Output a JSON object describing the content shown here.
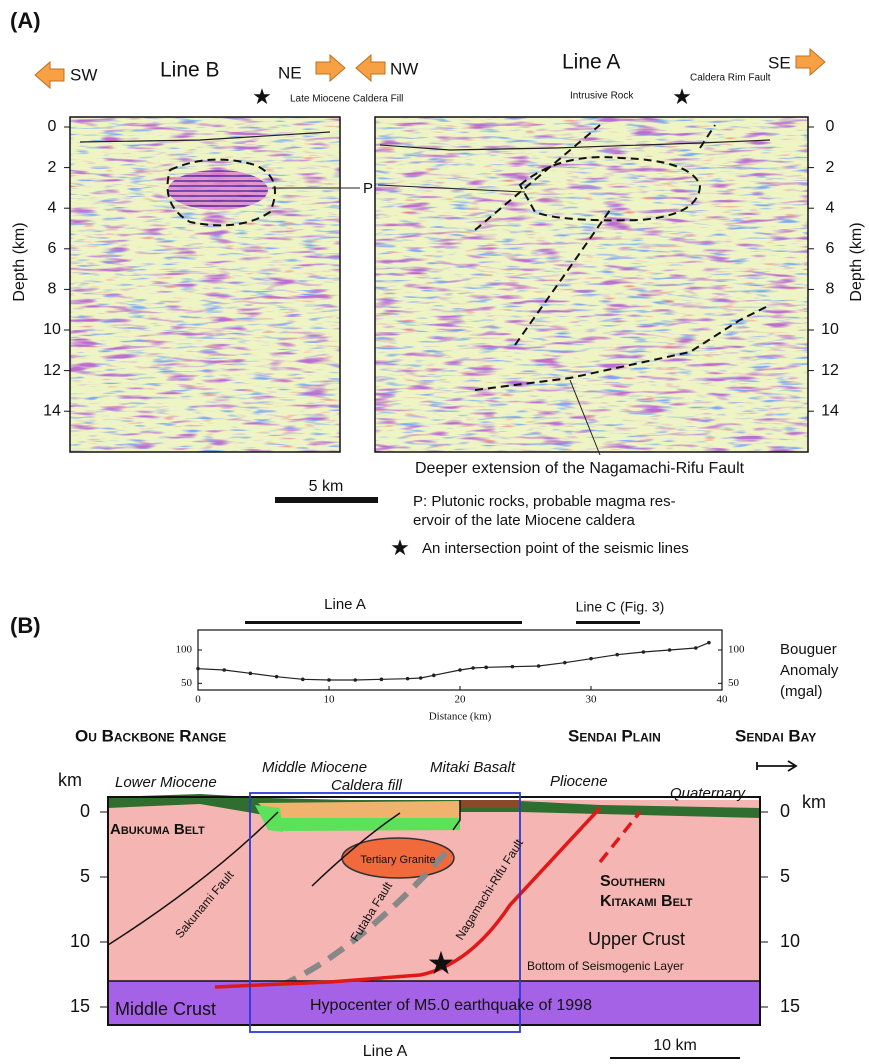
{
  "panel_a": {
    "label": "(A)",
    "line_b": {
      "title": "Line B",
      "dir_left": "SW",
      "dir_right": "NE"
    },
    "line_a": {
      "title": "Line A",
      "dir_left": "NW",
      "dir_right": "SE"
    },
    "annotations": {
      "caldera_fill": "Late Miocene Caldera Fill",
      "intrusive": "Intrusive Rock",
      "rim_fault": "Caldera Rim Fault",
      "p": "P",
      "deeper": "Deeper extension of the Nagamachi-Rifu Fault"
    },
    "depth_label": "Depth (km)",
    "depth_ticks": [
      0,
      2,
      4,
      6,
      8,
      10,
      12,
      14
    ],
    "scale_bar": "5 km",
    "legend": {
      "p_lines": [
        "P: Plutonic rocks, probable magma res-",
        "ervoir of the late Miocene caldera"
      ],
      "star": "An intersection point of the seismic lines"
    }
  },
  "panel_b": {
    "label": "(B)",
    "profile_lines": {
      "line_a": "Line A",
      "line_c": "Line C (Fig. 3)"
    },
    "regions": {
      "ou": "Ou Backbone Range",
      "plain": "Sendai Plain",
      "bay": "Sendai Bay"
    },
    "units": {
      "lower_miocene": "Lower Miocene",
      "middle_miocene": "Middle Miocene",
      "caldera_fill": "Caldera fill",
      "mitaki": "Mitaki Basalt",
      "pliocene": "Pliocene",
      "quaternary": "Quaternary",
      "abukuma": "Abukuma Belt",
      "granite": "Tertiary Granite",
      "kitakami": [
        "Southern",
        "Kitakami Belt"
      ],
      "upper_crust": "Upper Crust",
      "middle_crust": "Middle Crust"
    },
    "faults": {
      "sakunami": "Sakunami Fault",
      "futaba": "Futaba Fault",
      "nagamachi": "Nagamachi-Rifu Fault"
    },
    "bottom_layer": "Bottom of Seismogenic Layer",
    "hypocenter": "Hypocenter of M5.0 earthquake of 1998",
    "depth_unit": "km",
    "depth_ticks": [
      0,
      5,
      10,
      15
    ],
    "line_a_box": "Line A",
    "scale_bar": "10 km"
  },
  "chart_data": {
    "type": "line",
    "xlabel": "Distance (km)",
    "ylabel": [
      "Bouguer",
      "Anomaly",
      "(mgal)"
    ],
    "x": [
      0,
      2,
      4,
      6,
      8,
      10,
      12,
      14,
      16,
      17,
      18,
      20,
      21,
      22,
      24,
      26,
      28,
      30,
      32,
      34,
      36,
      38,
      39
    ],
    "values": [
      72,
      70,
      65,
      60,
      56,
      55,
      55,
      56,
      57,
      58,
      62,
      70,
      73,
      74,
      75,
      76,
      81,
      87,
      93,
      97,
      100,
      103,
      111
    ],
    "color": "#222222",
    "xlim": [
      0,
      40
    ],
    "ylim": [
      40,
      130
    ],
    "xticks": [
      0,
      10,
      20,
      30,
      40
    ],
    "yticks": [
      50,
      100
    ]
  }
}
